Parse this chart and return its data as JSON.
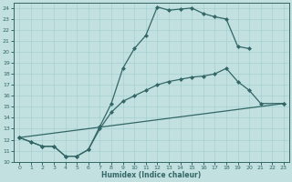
{
  "xlabel": "Humidex (Indice chaleur)",
  "xlim": [
    -0.5,
    23.5
  ],
  "ylim": [
    10,
    24.5
  ],
  "yticks": [
    10,
    11,
    12,
    13,
    14,
    15,
    16,
    17,
    18,
    19,
    20,
    21,
    22,
    23,
    24
  ],
  "xticks": [
    0,
    1,
    2,
    3,
    4,
    5,
    6,
    7,
    8,
    9,
    10,
    11,
    12,
    13,
    14,
    15,
    16,
    17,
    18,
    19,
    20,
    21,
    22,
    23
  ],
  "background_color": "#c2e0e0",
  "line_color": "#336666",
  "grid_color": "#9ecece",
  "line1_x": [
    0,
    1,
    2,
    3,
    4,
    5,
    6,
    7,
    8,
    9,
    10,
    11,
    12,
    13,
    14,
    15,
    16,
    17,
    18,
    19,
    20
  ],
  "line1_y": [
    12.2,
    11.8,
    11.4,
    11.4,
    10.5,
    10.5,
    11.1,
    13.2,
    15.3,
    18.5,
    20.3,
    21.5,
    24.1,
    23.8,
    23.9,
    24.0,
    23.5,
    23.2,
    23.0,
    20.5,
    20.3
  ],
  "line2_x": [
    0,
    1,
    2,
    3,
    4,
    5,
    6,
    7,
    8,
    9,
    10,
    11,
    12,
    13,
    14,
    15,
    16,
    17,
    18,
    19,
    20,
    21,
    23
  ],
  "line2_y": [
    12.2,
    11.8,
    11.4,
    11.4,
    10.5,
    10.5,
    11.1,
    13.0,
    14.5,
    15.5,
    16.0,
    16.5,
    17.0,
    17.3,
    17.5,
    17.7,
    17.8,
    18.0,
    18.5,
    17.3,
    16.5,
    15.3,
    15.3
  ],
  "line3_x": [
    0,
    23
  ],
  "line3_y": [
    12.2,
    15.3
  ]
}
